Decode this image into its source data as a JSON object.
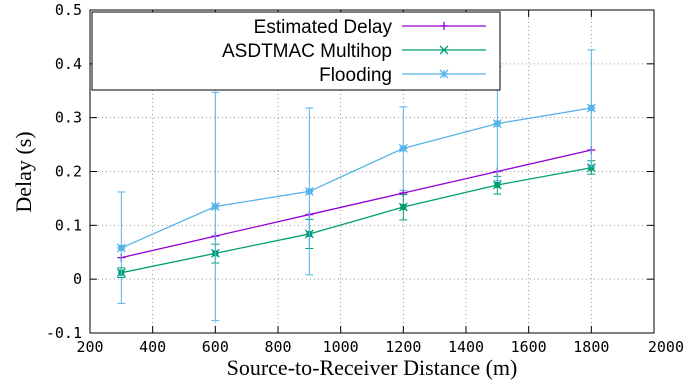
{
  "chart_data": {
    "type": "line",
    "xlabel": "Source-to-Receiver Distance (m)",
    "ylabel": "Delay (s)",
    "xlim": [
      200,
      2000
    ],
    "ylim": [
      -0.1,
      0.5
    ],
    "xticks": [
      200,
      400,
      600,
      800,
      1000,
      1200,
      1400,
      1600,
      1800,
      2000
    ],
    "yticks": [
      -0.1,
      0,
      0.1,
      0.2,
      0.3,
      0.4,
      0.5
    ],
    "ytick_labels": [
      "-0.1",
      "0",
      "0.1",
      "0.2",
      "0.3",
      "0.4",
      "0.5"
    ],
    "grid": true,
    "legend_position": "top-left",
    "x": [
      300,
      600,
      900,
      1200,
      1500,
      1800
    ],
    "series": [
      {
        "name": "Estimated Delay",
        "color": "#9400d3",
        "marker": "plus",
        "values": [
          0.04,
          0.08,
          0.12,
          0.16,
          0.2,
          0.24
        ]
      },
      {
        "name": "ASDTMAC Multihop",
        "color": "#009e73",
        "marker": "cross",
        "values": [
          0.012,
          0.048,
          0.084,
          0.134,
          0.175,
          0.207
        ],
        "error": [
          [
            0.003,
            0.021
          ],
          [
            0.03,
            0.065
          ],
          [
            0.057,
            0.111
          ],
          [
            0.11,
            0.157
          ],
          [
            0.158,
            0.191
          ],
          [
            0.195,
            0.22
          ]
        ]
      },
      {
        "name": "Flooding",
        "color": "#56b4e9",
        "marker": "star",
        "values": [
          0.058,
          0.135,
          0.163,
          0.243,
          0.289,
          0.318
        ],
        "error": [
          [
            -0.045,
            0.162
          ],
          [
            -0.077,
            0.347
          ],
          [
            0.008,
            0.318
          ],
          [
            0.165,
            0.32
          ],
          [
            0.183,
            0.395
          ],
          [
            0.209,
            0.426
          ]
        ]
      }
    ]
  }
}
